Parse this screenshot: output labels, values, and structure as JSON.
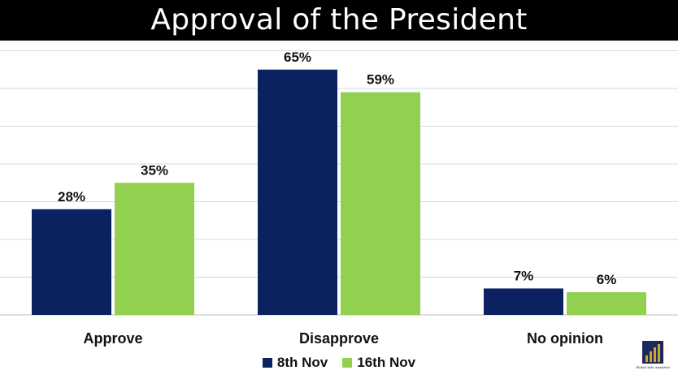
{
  "title": "Approval of the President",
  "colors": {
    "series1": "#0c2260",
    "series2": "#92d050",
    "grid": "#d9d9d9",
    "title_bg": "#000000"
  },
  "chart_data": {
    "type": "bar",
    "title": "Approval of the President",
    "categories": [
      "Approve",
      "Disapprove",
      "No opinion"
    ],
    "series": [
      {
        "name": "8th Nov",
        "values": [
          28,
          65,
          7
        ],
        "labels": [
          "28%",
          "65%",
          "7%"
        ]
      },
      {
        "name": "16th Nov",
        "values": [
          35,
          59,
          6
        ],
        "labels": [
          "35%",
          "59%",
          "6%"
        ]
      }
    ],
    "ylim": [
      0,
      70
    ],
    "grid": true,
    "legend_position": "bottom"
  },
  "logo": {
    "text": "Global Info Analytics",
    "icon": "bar-chart-logo-icon"
  }
}
